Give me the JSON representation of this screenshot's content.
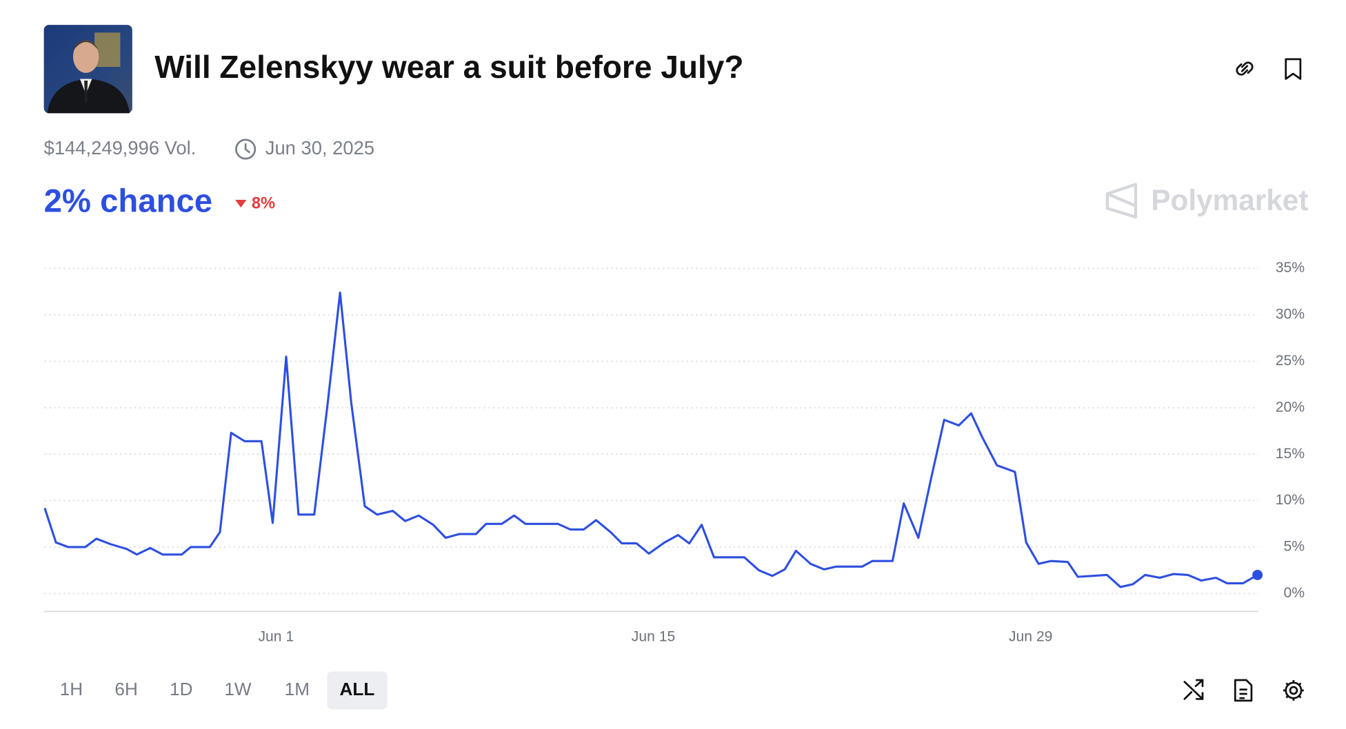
{
  "header": {
    "title": "Will Zelenskyy wear a suit before July?",
    "volume": "$144,249,996 Vol.",
    "end_date": "Jun 30, 2025",
    "chance": "2% chance",
    "change": "8%",
    "brand": "Polymarket"
  },
  "chart_data": {
    "type": "line",
    "color": "#2d4fe0",
    "x": [
      "2025-05-23T10:00",
      "2025-05-23T20:00",
      "2025-05-24T07:00",
      "2025-05-24T22:00",
      "2025-05-25T08:00",
      "2025-05-25T21:00",
      "2025-05-26T11:00",
      "2025-05-26T20:00",
      "2025-05-27T08:00",
      "2025-05-27T19:00",
      "2025-05-28T12:00",
      "2025-05-28T20:00",
      "2025-05-29T13:00",
      "2025-05-29T22:00",
      "2025-05-30T08:00",
      "2025-05-30T20:00",
      "2025-05-31T11:00",
      "2025-05-31T21:00",
      "2025-06-01T09:00",
      "2025-06-01T20:00",
      "2025-06-02T10:00",
      "2025-06-02T22:00",
      "2025-06-03T09:00",
      "2025-06-03T19:00",
      "2025-06-04T07:00",
      "2025-06-04T18:00",
      "2025-06-05T08:00",
      "2025-06-05T19:00",
      "2025-06-06T07:00",
      "2025-06-06T20:00",
      "2025-06-07T07:00",
      "2025-06-07T19:00",
      "2025-06-08T10:00",
      "2025-06-08T19:00",
      "2025-06-09T09:00",
      "2025-06-09T20:00",
      "2025-06-10T06:00",
      "2025-06-11T11:00",
      "2025-06-11T22:00",
      "2025-06-12T10:00",
      "2025-06-12T21:00",
      "2025-06-13T10:00",
      "2025-06-13T20:00",
      "2025-06-14T09:00",
      "2025-06-14T20:00",
      "2025-06-15T10:00",
      "2025-06-15T22:00",
      "2025-06-16T08:00",
      "2025-06-16T19:00",
      "2025-06-17T06:00",
      "2025-06-18T09:00",
      "2025-06-18T22:00",
      "2025-06-19T10:00",
      "2025-06-19T21:00",
      "2025-06-20T07:00",
      "2025-06-20T20:00",
      "2025-06-21T08:00",
      "2025-06-21T19:00",
      "2025-06-22T18:00",
      "2025-06-23T03:00",
      "2025-06-23T21:00",
      "2025-06-24T07:00",
      "2025-06-24T20:00",
      "2025-06-25T07:00",
      "2025-06-25T19:00",
      "2025-06-26T08:00",
      "2025-06-26T19:00",
      "2025-06-27T05:00",
      "2025-06-27T18:00",
      "2025-06-28T10:00",
      "2025-06-28T20:00",
      "2025-06-29T07:00",
      "2025-06-29T18:00",
      "2025-06-30T09:00",
      "2025-06-30T18:00",
      "2025-07-01T20:00",
      "2025-07-02T08:00",
      "2025-07-02T19:00",
      "2025-07-03T06:00",
      "2025-07-03T19:00",
      "2025-07-04T07:00",
      "2025-07-04T20:00",
      "2025-07-05T08:00",
      "2025-07-05T21:00",
      "2025-07-06T07:00",
      "2025-07-06T21:00",
      "2025-07-07T10:00"
    ],
    "values": [
      9.2,
      5.5,
      5.0,
      5.0,
      5.9,
      5.3,
      4.8,
      4.2,
      4.9,
      4.2,
      4.2,
      5.0,
      5.0,
      6.6,
      17.3,
      16.4,
      16.4,
      7.6,
      25.5,
      8.5,
      8.5,
      20.5,
      32.4,
      20.5,
      9.4,
      8.5,
      8.9,
      7.8,
      8.4,
      7.4,
      6.0,
      6.4,
      6.4,
      7.5,
      7.5,
      8.4,
      7.5,
      7.5,
      6.9,
      6.9,
      7.9,
      6.6,
      5.4,
      5.4,
      4.3,
      5.5,
      6.3,
      5.4,
      7.4,
      3.9,
      3.9,
      2.5,
      1.9,
      2.6,
      4.6,
      3.2,
      2.6,
      2.9,
      2.9,
      3.5,
      3.5,
      9.7,
      6.0,
      12.2,
      18.7,
      18.1,
      19.4,
      16.8,
      13.8,
      13.1,
      5.5,
      3.2,
      3.5,
      3.4,
      1.8,
      2.0,
      0.7,
      1.0,
      2.0,
      1.7,
      2.1,
      2.0,
      1.4,
      1.7,
      1.1,
      1.1,
      2.0
    ],
    "xlim": [
      "2025-05-23T10:00",
      "2025-07-07T10:00"
    ],
    "xticks": [
      {
        "value": "2025-06-01T00:00",
        "label": "Jun 1"
      },
      {
        "value": "2025-06-15T00:00",
        "label": "Jun 15"
      },
      {
        "value": "2025-06-29T00:00",
        "label": "Jun 29"
      }
    ],
    "ylim": [
      -2,
      35
    ],
    "yticks": [
      {
        "value": 0,
        "label": "0%"
      },
      {
        "value": 5,
        "label": "5%"
      },
      {
        "value": 10,
        "label": "10%"
      },
      {
        "value": 15,
        "label": "15%"
      },
      {
        "value": 20,
        "label": "20%"
      },
      {
        "value": 25,
        "label": "25%"
      },
      {
        "value": 30,
        "label": "30%"
      },
      {
        "value": 35,
        "label": "35%"
      }
    ],
    "grid": true
  },
  "controls": {
    "ranges": [
      "1H",
      "6H",
      "1D",
      "1W",
      "1M",
      "ALL"
    ],
    "selected": "ALL"
  }
}
